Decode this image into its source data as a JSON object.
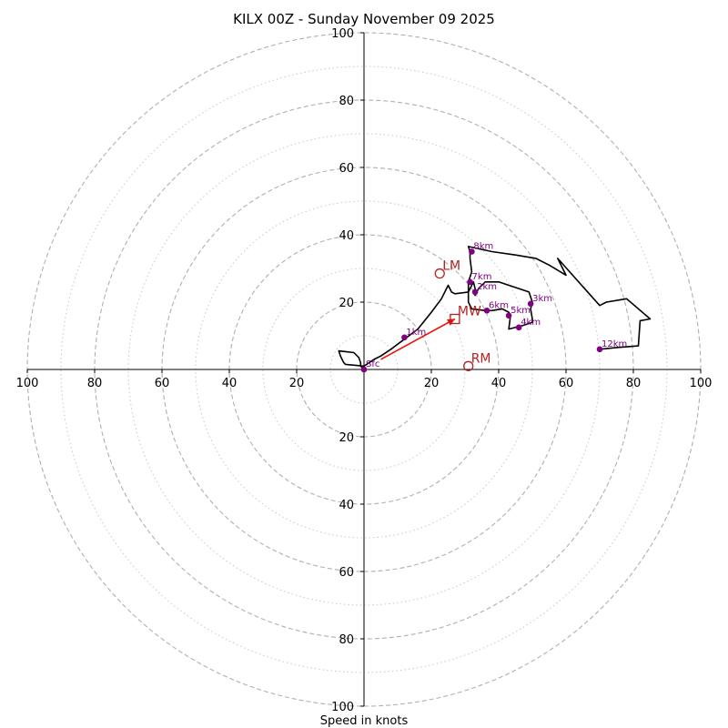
{
  "chart_data": {
    "type": "hodograph",
    "title": "KILX 00Z - Sunday November 09 2025",
    "xlabel": "Speed in knots",
    "units": "knots",
    "range": [
      -100,
      100
    ],
    "ring_speeds": [
      10,
      20,
      30,
      40,
      50,
      60,
      70,
      80,
      90,
      100
    ],
    "labeled_ticks": [
      "100",
      "80",
      "60",
      "40",
      "20",
      "20",
      "40",
      "60",
      "80",
      "100"
    ],
    "y_tick_labels": [
      "100",
      "80",
      "60",
      "40",
      "20",
      "20",
      "40",
      "60",
      "80",
      "100"
    ],
    "hodograph_uv": [
      [
        0,
        0
      ],
      [
        -1,
        1
      ],
      [
        -1,
        2
      ],
      [
        -1.5,
        3.5
      ],
      [
        -3,
        5
      ],
      [
        -7.5,
        5.5
      ],
      [
        -7,
        4
      ],
      [
        -6.5,
        3
      ],
      [
        -6,
        2
      ],
      [
        -5.5,
        1.5
      ],
      [
        0,
        1
      ],
      [
        3,
        3
      ],
      [
        5,
        4
      ],
      [
        8,
        6
      ],
      [
        12,
        9
      ],
      [
        16,
        12
      ],
      [
        20,
        17
      ],
      [
        23,
        21
      ],
      [
        25,
        25
      ],
      [
        26,
        23
      ],
      [
        27,
        22.5
      ],
      [
        31,
        23
      ],
      [
        32,
        25
      ],
      [
        32.5,
        26
      ],
      [
        33,
        24
      ],
      [
        33,
        22
      ],
      [
        34,
        24
      ],
      [
        36,
        26
      ],
      [
        40,
        26
      ],
      [
        49,
        23
      ],
      [
        50,
        20
      ],
      [
        49.5,
        18
      ],
      [
        50,
        15
      ],
      [
        50,
        14
      ],
      [
        47,
        13
      ],
      [
        43,
        12
      ],
      [
        43.5,
        16
      ],
      [
        43,
        17
      ],
      [
        41,
        18
      ],
      [
        38,
        17.5
      ],
      [
        36,
        17.5
      ],
      [
        32,
        18
      ],
      [
        31,
        20
      ],
      [
        31,
        23
      ],
      [
        31,
        26
      ],
      [
        32,
        29
      ],
      [
        31.5,
        33
      ],
      [
        31.5,
        35
      ],
      [
        31,
        36.5
      ],
      [
        38,
        35
      ],
      [
        45,
        34
      ],
      [
        51,
        33
      ],
      [
        55,
        31
      ],
      [
        60,
        28
      ],
      [
        57.5,
        33
      ],
      [
        70,
        19
      ],
      [
        72,
        20
      ],
      [
        78,
        21
      ],
      [
        85,
        15
      ],
      [
        82,
        14.5
      ],
      [
        81.5,
        7
      ],
      [
        75,
        6.5
      ],
      [
        70,
        6
      ]
    ],
    "height_markers": [
      {
        "label": "Sfc",
        "u": 0,
        "v": 0
      },
      {
        "label": "1km",
        "u": 12,
        "v": 9.5
      },
      {
        "label": "2km",
        "u": 33,
        "v": 23
      },
      {
        "label": "3km",
        "u": 49.5,
        "v": 19.5
      },
      {
        "label": "4km",
        "u": 46,
        "v": 12.5
      },
      {
        "label": "5km",
        "u": 43,
        "v": 16
      },
      {
        "label": "6km",
        "u": 36.5,
        "v": 17.5
      },
      {
        "label": "7km",
        "u": 31.5,
        "v": 26
      },
      {
        "label": "8km",
        "u": 32,
        "v": 35
      },
      {
        "label": "12km",
        "u": 70,
        "v": 6
      }
    ],
    "storm_motion": [
      {
        "label": "LM",
        "symbol": "circle",
        "u": 22.5,
        "v": 28.5
      },
      {
        "label": "MW",
        "symbol": "square",
        "u": 27,
        "v": 15
      },
      {
        "label": "RM",
        "symbol": "circle",
        "u": 31,
        "v": 1
      }
    ],
    "shear_vector": {
      "from": [
        5,
        3
      ],
      "to": [
        27,
        15
      ]
    },
    "colors": {
      "trace": "#000000",
      "height_marker": "#800080",
      "storm_motion": "#b22222",
      "shear_vector": "#e8150b",
      "ring_major": "#b0b0b0",
      "ring_minor": "#cccccc"
    }
  }
}
